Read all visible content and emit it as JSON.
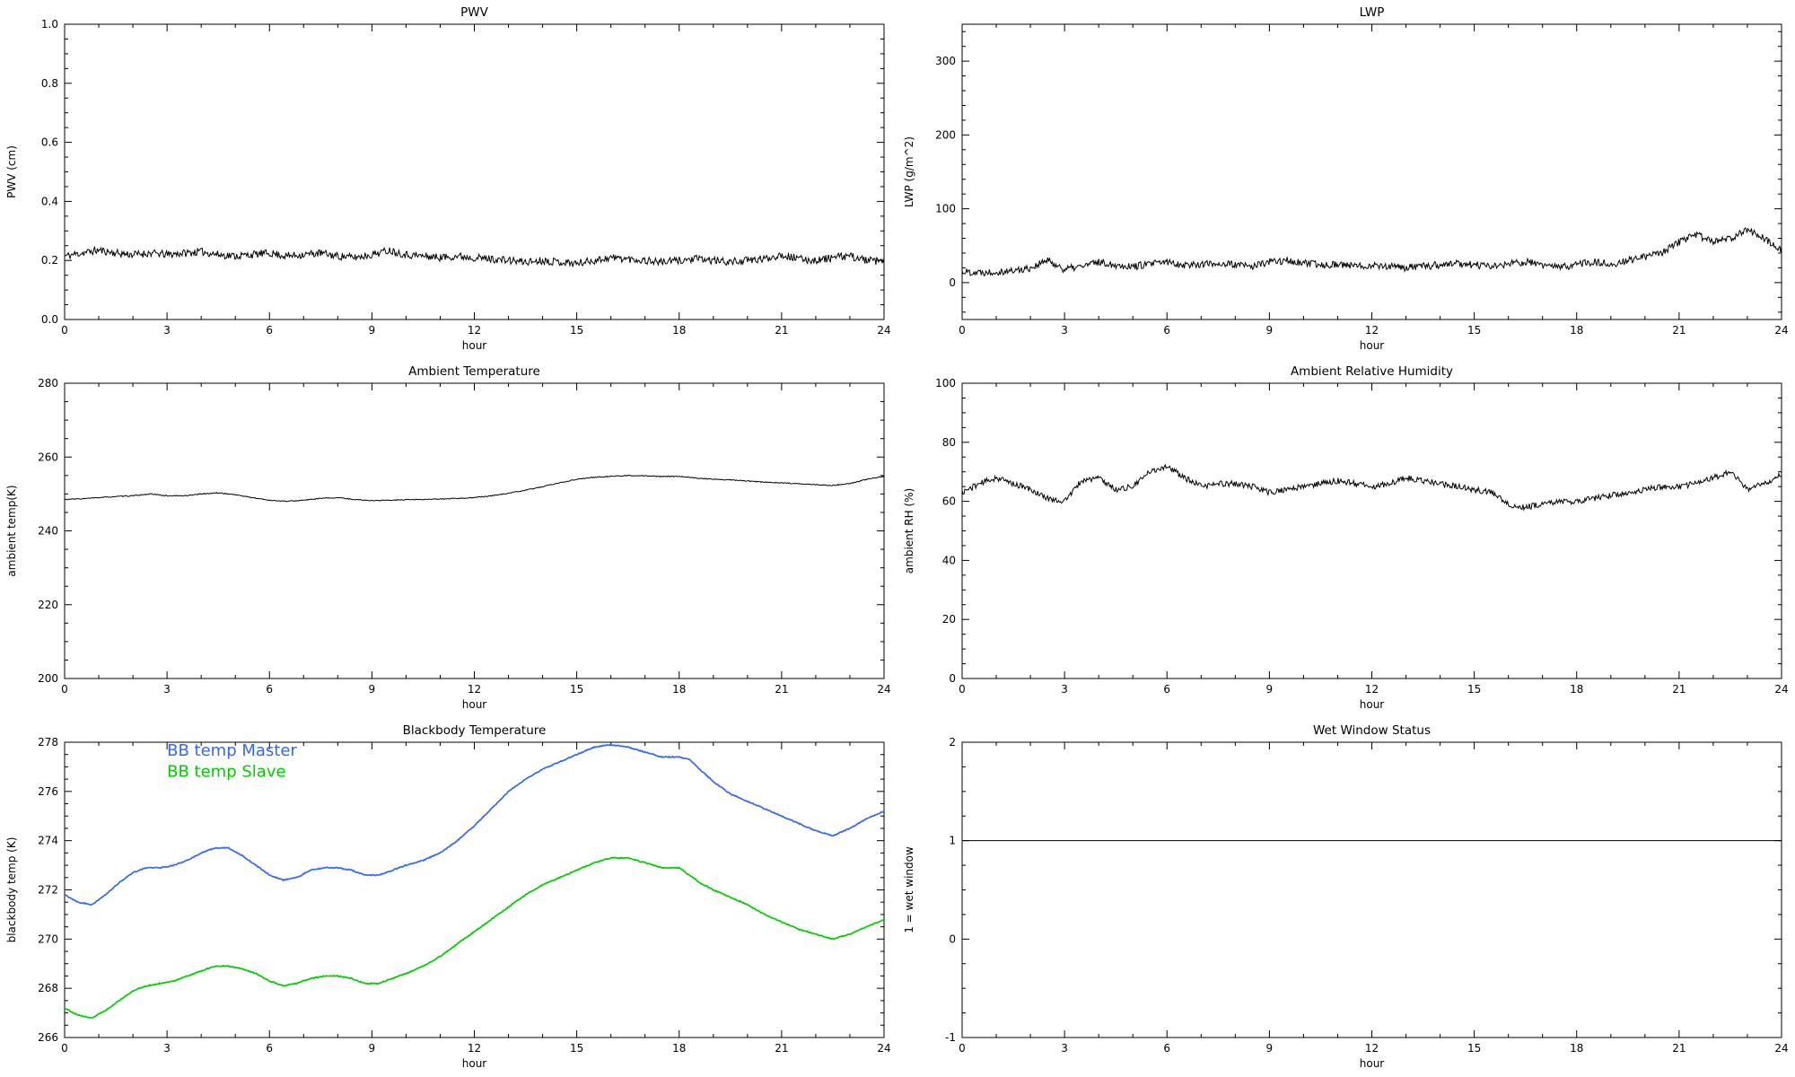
{
  "page": {
    "background": "#ffffff",
    "frame_color": "#000000"
  },
  "chart_data": [
    {
      "id": "pwv",
      "type": "line",
      "title": "PWV",
      "xlabel": "hour",
      "ylabel": "PWV (cm)",
      "xlim": [
        0,
        24
      ],
      "ylim": [
        0.0,
        1.0
      ],
      "xticks": [
        0,
        3,
        6,
        9,
        12,
        15,
        18,
        21,
        24
      ],
      "xtick_labels": [
        "0",
        "3",
        "6",
        "9",
        "12",
        "15",
        "18",
        "21",
        "24"
      ],
      "yticks": [
        0,
        0.2,
        0.4,
        0.6,
        0.8,
        1.0
      ],
      "ytick_labels": [
        "0.0",
        "0.2",
        "0.4",
        "0.6",
        "0.8",
        "1.0"
      ],
      "xminor": 1,
      "yminor": 0.05,
      "grid": false,
      "series": [
        {
          "name": "PWV",
          "color": "#000000",
          "width": 1,
          "noise": 0.013,
          "seed": 11,
          "x0": 0,
          "dx": 0.5,
          "y": [
            0.215,
            0.225,
            0.235,
            0.225,
            0.22,
            0.225,
            0.22,
            0.225,
            0.23,
            0.22,
            0.215,
            0.22,
            0.225,
            0.215,
            0.22,
            0.225,
            0.215,
            0.21,
            0.22,
            0.235,
            0.22,
            0.215,
            0.21,
            0.215,
            0.21,
            0.205,
            0.2,
            0.195,
            0.2,
            0.195,
            0.19,
            0.2,
            0.21,
            0.205,
            0.2,
            0.195,
            0.2,
            0.205,
            0.2,
            0.195,
            0.2,
            0.205,
            0.22,
            0.205,
            0.2,
            0.21,
            0.215,
            0.2,
            0.195
          ]
        }
      ]
    },
    {
      "id": "lwp",
      "type": "line",
      "title": "LWP",
      "xlabel": "hour",
      "ylabel": "LWP (g/m^2)",
      "xlim": [
        0,
        24
      ],
      "ylim": [
        -50,
        350
      ],
      "xticks": [
        0,
        3,
        6,
        9,
        12,
        15,
        18,
        21,
        24
      ],
      "xtick_labels": [
        "0",
        "3",
        "6",
        "9",
        "12",
        "15",
        "18",
        "21",
        "24"
      ],
      "yticks": [
        0,
        100,
        200,
        300
      ],
      "ytick_labels": [
        "0",
        "100",
        "200",
        "300"
      ],
      "xminor": 1,
      "yminor": 20,
      "grid": false,
      "series": [
        {
          "name": "LWP",
          "color": "#000000",
          "width": 1,
          "noise": 5,
          "seed": 22,
          "x0": 0,
          "dx": 0.5,
          "y": [
            15,
            14,
            15,
            16,
            20,
            30,
            18,
            22,
            28,
            24,
            22,
            25,
            28,
            24,
            25,
            26,
            24,
            22,
            28,
            30,
            26,
            24,
            25,
            22,
            24,
            22,
            20,
            22,
            24,
            26,
            24,
            22,
            25,
            28,
            24,
            20,
            25,
            28,
            25,
            30,
            35,
            40,
            55,
            65,
            55,
            60,
            72,
            60,
            45
          ]
        }
      ]
    },
    {
      "id": "ambient-temp",
      "type": "line",
      "title": "Ambient Temperature",
      "xlabel": "hour",
      "ylabel": "ambient temp(K)",
      "xlim": [
        0,
        24
      ],
      "ylim": [
        200,
        280
      ],
      "xticks": [
        0,
        3,
        6,
        9,
        12,
        15,
        18,
        21,
        24
      ],
      "xtick_labels": [
        "0",
        "3",
        "6",
        "9",
        "12",
        "15",
        "18",
        "21",
        "24"
      ],
      "yticks": [
        200,
        220,
        240,
        260,
        280
      ],
      "ytick_labels": [
        "200",
        "220",
        "240",
        "260",
        "280"
      ],
      "xminor": 1,
      "yminor": 5,
      "grid": false,
      "series": [
        {
          "name": "ambient temp",
          "color": "#000000",
          "width": 1,
          "noise": 0.12,
          "seed": 33,
          "x0": 0,
          "dx": 0.5,
          "y": [
            248.5,
            248.7,
            249.0,
            249.3,
            249.5,
            250.0,
            249.5,
            249.5,
            250.0,
            250.3,
            249.8,
            249.0,
            248.3,
            248.0,
            248.3,
            248.8,
            249.0,
            248.5,
            248.2,
            248.3,
            248.4,
            248.5,
            248.6,
            248.8,
            249.0,
            249.5,
            250.2,
            251.0,
            252.0,
            253.0,
            254.0,
            254.5,
            254.8,
            255.0,
            254.9,
            254.7,
            254.8,
            254.3,
            254.0,
            253.8,
            253.5,
            253.2,
            253.0,
            252.8,
            252.5,
            252.3,
            252.8,
            254.0,
            254.8
          ]
        }
      ]
    },
    {
      "id": "ambient-rh",
      "type": "line",
      "title": "Ambient Relative Humidity",
      "xlabel": "hour",
      "ylabel": "ambient RH (%)",
      "xlim": [
        0,
        24
      ],
      "ylim": [
        0,
        100
      ],
      "xticks": [
        0,
        3,
        6,
        9,
        12,
        15,
        18,
        21,
        24
      ],
      "xtick_labels": [
        "0",
        "3",
        "6",
        "9",
        "12",
        "15",
        "18",
        "21",
        "24"
      ],
      "yticks": [
        0,
        20,
        40,
        60,
        80,
        100
      ],
      "ytick_labels": [
        "0",
        "20",
        "40",
        "60",
        "80",
        "100"
      ],
      "xminor": 1,
      "yminor": 5,
      "grid": false,
      "series": [
        {
          "name": "ambient RH",
          "color": "#000000",
          "width": 1,
          "noise": 1.0,
          "seed": 44,
          "x0": 0,
          "dx": 0.5,
          "y": [
            63,
            66,
            68,
            66,
            64,
            61,
            60,
            67,
            68,
            64,
            65,
            70,
            72,
            68,
            65,
            66,
            66,
            65,
            63,
            64,
            65,
            66,
            67,
            66,
            65,
            66,
            68,
            67,
            66,
            65,
            64,
            63,
            59,
            58,
            59,
            60,
            60,
            61,
            62,
            63,
            64,
            65,
            65,
            66,
            68,
            70,
            64,
            66,
            69
          ]
        }
      ]
    },
    {
      "id": "blackbody-temp",
      "type": "line",
      "title": "Blackbody Temperature",
      "xlabel": "hour",
      "ylabel": "blackbody temp (K)",
      "xlim": [
        0,
        24
      ],
      "ylim": [
        266,
        278
      ],
      "xticks": [
        0,
        3,
        6,
        9,
        12,
        15,
        18,
        21,
        24
      ],
      "xtick_labels": [
        "0",
        "3",
        "6",
        "9",
        "12",
        "15",
        "18",
        "21",
        "24"
      ],
      "yticks": [
        266,
        268,
        270,
        272,
        274,
        276,
        278
      ],
      "ytick_labels": [
        "266",
        "268",
        "270",
        "272",
        "274",
        "276",
        "278"
      ],
      "xminor": 1,
      "yminor": 0.5,
      "grid": false,
      "legend": [
        {
          "label": "BB temp Master",
          "color": "#3366ff",
          "x": 3.0,
          "y": 277.45
        },
        {
          "label": "BB temp Slave",
          "color": "#00cc00",
          "x": 3.0,
          "y": 276.6
        }
      ],
      "series": [
        {
          "name": "BB temp Master",
          "color": "#3366ff",
          "width": 1.7,
          "noise": 0.02,
          "seed": 55,
          "x": [
            0,
            0.4,
            0.8,
            1.2,
            1.6,
            2,
            2.4,
            2.8,
            3.2,
            3.6,
            4,
            4.4,
            4.8,
            5.2,
            5.6,
            6,
            6.4,
            6.8,
            7.2,
            7.6,
            8,
            8.4,
            8.8,
            9.2,
            9.6,
            10,
            10.5,
            11,
            11.5,
            12,
            12.5,
            13,
            13.5,
            14,
            14.5,
            15,
            15.5,
            16,
            16.5,
            17,
            17.5,
            18,
            18.3,
            18.6,
            19,
            19.5,
            20,
            20.5,
            21,
            21.5,
            22,
            22.5,
            23,
            23.5,
            24
          ],
          "y": [
            271.8,
            271.5,
            271.4,
            271.8,
            272.3,
            272.7,
            272.9,
            272.9,
            273.0,
            273.2,
            273.5,
            273.7,
            273.7,
            273.4,
            273.0,
            272.6,
            272.4,
            272.5,
            272.8,
            272.9,
            272.9,
            272.8,
            272.6,
            272.6,
            272.8,
            273.0,
            273.2,
            273.5,
            274.0,
            274.6,
            275.3,
            276.0,
            276.5,
            276.9,
            277.2,
            277.5,
            277.8,
            277.9,
            277.8,
            277.6,
            277.4,
            277.4,
            277.3,
            276.9,
            276.4,
            275.9,
            275.6,
            275.3,
            275.0,
            274.7,
            274.4,
            274.2,
            274.5,
            274.9,
            275.2
          ]
        },
        {
          "name": "BB temp Slave",
          "color": "#00cc00",
          "width": 1.7,
          "noise": 0.02,
          "seed": 66,
          "x": [
            0,
            0.4,
            0.8,
            1.2,
            1.6,
            2,
            2.4,
            2.8,
            3.2,
            3.6,
            4,
            4.4,
            4.8,
            5.2,
            5.6,
            6,
            6.4,
            6.8,
            7.2,
            7.6,
            8,
            8.4,
            8.8,
            9.2,
            9.6,
            10,
            10.5,
            11,
            11.5,
            12,
            12.5,
            13,
            13.5,
            14,
            14.5,
            15,
            15.5,
            16,
            16.5,
            17,
            17.5,
            18,
            18.3,
            18.6,
            19,
            19.5,
            20,
            20.5,
            21,
            21.5,
            22,
            22.5,
            23,
            23.5,
            24
          ],
          "y": [
            267.2,
            266.9,
            266.8,
            267.1,
            267.5,
            267.9,
            268.1,
            268.2,
            268.3,
            268.5,
            268.7,
            268.9,
            268.9,
            268.8,
            268.6,
            268.3,
            268.1,
            268.2,
            268.4,
            268.5,
            268.5,
            268.4,
            268.2,
            268.2,
            268.4,
            268.6,
            268.9,
            269.3,
            269.8,
            270.3,
            270.8,
            271.3,
            271.8,
            272.2,
            272.5,
            272.8,
            273.1,
            273.3,
            273.3,
            273.1,
            272.9,
            272.9,
            272.6,
            272.3,
            272.0,
            271.7,
            271.4,
            271.0,
            270.7,
            270.4,
            270.2,
            270.0,
            270.2,
            270.5,
            270.8
          ]
        }
      ]
    },
    {
      "id": "wet-window",
      "type": "line",
      "title": "Wet Window Status",
      "xlabel": "hour",
      "ylabel": "1 = wet window",
      "xlim": [
        0,
        24
      ],
      "ylim": [
        -1,
        2
      ],
      "xticks": [
        0,
        3,
        6,
        9,
        12,
        15,
        18,
        21,
        24
      ],
      "xtick_labels": [
        "0",
        "3",
        "6",
        "9",
        "12",
        "15",
        "18",
        "21",
        "24"
      ],
      "yticks": [
        -1,
        0,
        1,
        2
      ],
      "ytick_labels": [
        "-1",
        "0",
        "1",
        "2"
      ],
      "xminor": 1,
      "yminor": 0.25,
      "grid": false,
      "series": [
        {
          "name": "wet window status",
          "color": "#000000",
          "width": 1,
          "noise": 0,
          "seed": 77,
          "x": [
            0,
            24
          ],
          "y": [
            1,
            1
          ]
        }
      ]
    }
  ]
}
